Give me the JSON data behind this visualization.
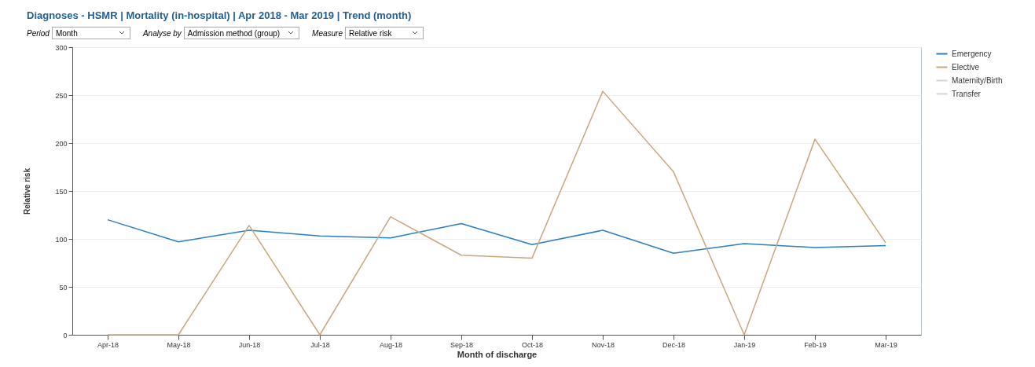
{
  "chart_data": {
    "type": "line",
    "title": "Diagnoses - HSMR | Mortality (in-hospital) | Apr 2018 - Mar 2019 | Trend (month)",
    "annotations": [
      "Period",
      "Month",
      "Analyse by",
      "Admission method (group)",
      "Measure",
      "Relative risk"
    ],
    "xlabel": "Month of discharge",
    "ylabel": "Relative risk",
    "categories": [
      "Apr-18",
      "May-18",
      "Jun-18",
      "Jul-18",
      "Aug-18",
      "Sep-18",
      "Oct-18",
      "Nov-18",
      "Dec-18",
      "Jan-19",
      "Feb-19",
      "Mar-19"
    ],
    "series": [
      {
        "name": "Emergency",
        "color": "#2a7fc0",
        "values": [
          120,
          97,
          109,
          103,
          101,
          116,
          94,
          109,
          85,
          95,
          91,
          93
        ]
      },
      {
        "name": "Elective",
        "color": "#c8a77e",
        "values": [
          0,
          0,
          114,
          0,
          123,
          83,
          80,
          254,
          170,
          0,
          204,
          96
        ]
      },
      {
        "name": "Maternity/Birth",
        "color": "#d4d4d4",
        "values": [
          null,
          null,
          null,
          null,
          null,
          null,
          null,
          null,
          null,
          null,
          null,
          null
        ]
      },
      {
        "name": "Transfer",
        "color": "#d4d4d4",
        "values": [
          null,
          null,
          null,
          null,
          null,
          null,
          null,
          null,
          null,
          null,
          null,
          null
        ]
      }
    ],
    "ylim": [
      0,
      300
    ],
    "yticks": [
      0,
      50,
      100,
      150,
      200,
      250,
      300
    ],
    "grid": "y",
    "legend": "top right",
    "line_style": "solid",
    "marker": "none"
  }
}
